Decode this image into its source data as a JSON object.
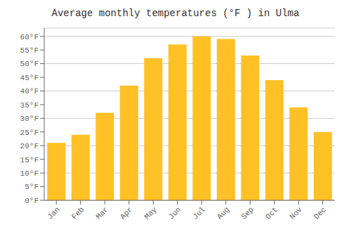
{
  "chart_data": {
    "type": "bar",
    "title": "Average monthly temperatures (°F ) in Ulma",
    "categories": [
      "Jan",
      "Feb",
      "Mar",
      "Apr",
      "May",
      "Jun",
      "Jul",
      "Aug",
      "Sep",
      "Oct",
      "Nov",
      "Dec"
    ],
    "values": [
      21,
      24,
      32,
      42,
      52,
      57,
      60,
      59,
      53,
      44,
      34,
      25
    ],
    "color": "#FFC125",
    "ylim": [
      0,
      63
    ],
    "yticks": [
      {
        "value": 0,
        "label": "0°F"
      },
      {
        "value": 5,
        "label": "5°F"
      },
      {
        "value": 10,
        "label": "10°F"
      },
      {
        "value": 15,
        "label": "15°F"
      },
      {
        "value": 20,
        "label": "20°F"
      },
      {
        "value": 25,
        "label": "25°F"
      },
      {
        "value": 30,
        "label": "30°F"
      },
      {
        "value": 35,
        "label": "35°F"
      },
      {
        "value": 40,
        "label": "40°F"
      },
      {
        "value": 45,
        "label": "45°F"
      },
      {
        "value": 50,
        "label": "50°F"
      },
      {
        "value": 55,
        "label": "55°F"
      },
      {
        "value": 60,
        "label": "60°F"
      }
    ],
    "grid": true
  }
}
